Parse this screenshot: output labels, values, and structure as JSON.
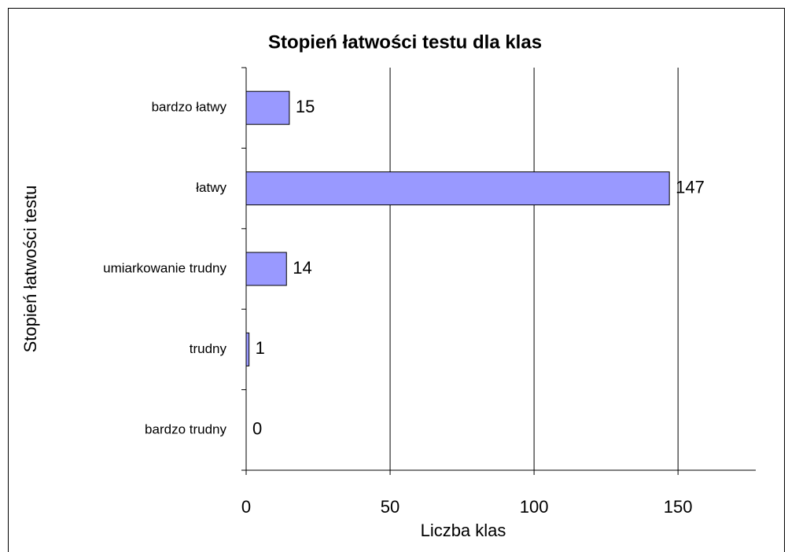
{
  "chart_data": {
    "type": "hbar",
    "title": "Stopień łatwości testu dla klas",
    "categories": [
      "bardzo łatwy",
      "łatwy",
      "umiarkowanie trudny",
      "trudny",
      "bardzo trudny"
    ],
    "values": [
      15,
      147,
      14,
      1,
      0
    ],
    "color": "#9999ff",
    "xlim": [
      0,
      177
    ],
    "xticks": [
      0,
      50,
      100,
      150
    ],
    "grid": true,
    "xlabel": "Liczba klas",
    "ylabel": "Stopień łatwości testu"
  }
}
